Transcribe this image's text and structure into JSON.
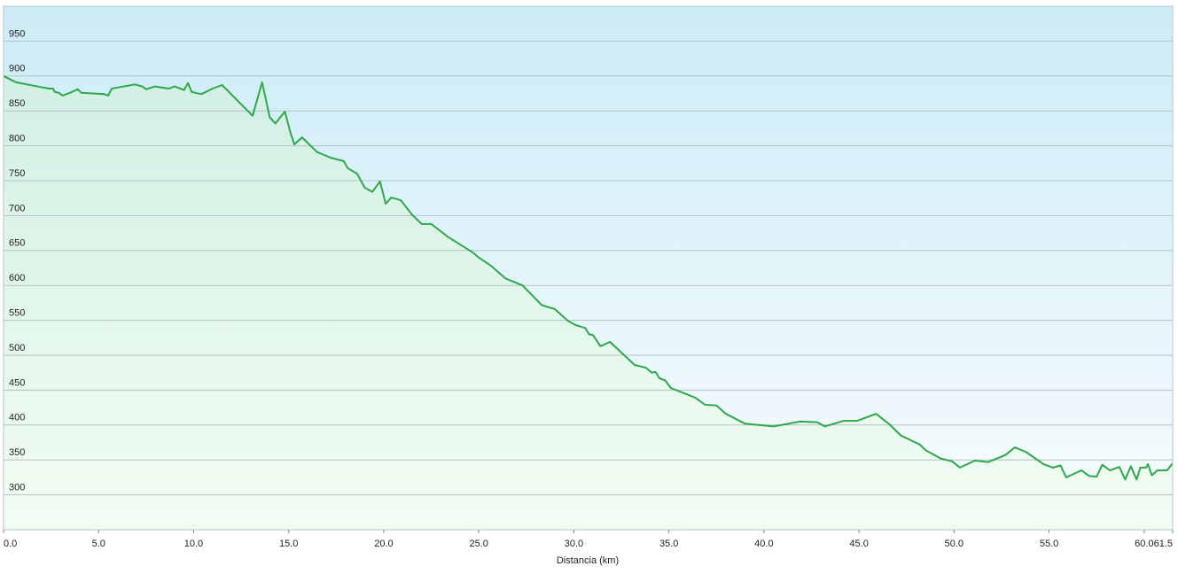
{
  "chart_data": {
    "type": "area",
    "x_label": "Distancia  (km)",
    "x": [
      0,
      0.65,
      1.6,
      2.4,
      2.6,
      2.7,
      2.9,
      3.1,
      3.5,
      3.9,
      4.1,
      5.3,
      5.5,
      5.7,
      6.9,
      7.3,
      7.5,
      7.97,
      8.7,
      9.0,
      9.5,
      9.7,
      9.9,
      10.4,
      11.0,
      11.5,
      13.1,
      13.6,
      14.0,
      14.3,
      14.8,
      15.1,
      15.3,
      15.7,
      16.5,
      17.2,
      17.9,
      18.1,
      18.6,
      19.0,
      19.4,
      19.8,
      20.1,
      20.4,
      20.9,
      21.5,
      22.0,
      22.5,
      23.4,
      24.7,
      24.99,
      25.6,
      26.4,
      27.3,
      28.3,
      29.0,
      29.7,
      30.1,
      30.6,
      30.8,
      31.0,
      31.4,
      31.9,
      33.2,
      33.8,
      34.1,
      34.3,
      34.5,
      34.8,
      35.1,
      36.4,
      36.9,
      37.5,
      38.0,
      39.0,
      40.5,
      41.9,
      42.8,
      43.2,
      44.2,
      44.9,
      45.9,
      46.6,
      47.2,
      48.2,
      48.5,
      49.3,
      49.9,
      50.3,
      51.1,
      51.8,
      52.7,
      53.2,
      53.8,
      54.7,
      55.2,
      55.6,
      55.9,
      56.7,
      57.1,
      57.5,
      57.8,
      58.2,
      58.7,
      59.0,
      59.3,
      59.6,
      59.8,
      60.1,
      60.2,
      60.4,
      60.7,
      61.2,
      61.5
    ],
    "values": [
      900,
      891,
      886,
      882,
      882,
      877,
      876,
      872,
      876,
      881,
      876,
      874,
      872,
      882,
      888,
      885,
      881,
      885,
      882,
      885,
      880,
      890,
      877,
      874,
      882,
      887,
      843,
      891,
      841,
      832,
      849,
      818,
      802,
      812,
      791,
      783,
      778,
      768,
      760,
      740,
      734,
      749,
      717,
      726,
      722,
      701,
      688,
      688,
      669,
      647,
      640,
      629,
      610,
      600,
      572,
      566,
      549,
      543,
      539,
      530,
      529,
      513,
      519,
      486,
      482,
      475,
      476,
      467,
      464,
      453,
      439,
      429,
      428,
      416,
      402,
      398,
      405,
      404,
      398,
      406,
      406,
      416,
      401,
      385,
      372,
      364,
      352,
      348,
      339,
      349,
      347,
      357,
      368,
      361,
      344,
      339,
      342,
      325,
      335,
      327,
      326,
      343,
      335,
      340,
      322,
      341,
      322,
      339,
      339,
      344,
      328,
      335,
      335,
      345
    ],
    "color": "#2ea84a",
    "xlim": [
      0,
      61.5
    ],
    "xticks": [
      {
        "value": 0,
        "label": "0.0"
      },
      {
        "value": 5,
        "label": "5.0"
      },
      {
        "value": 10,
        "label": "10.0"
      },
      {
        "value": 15,
        "label": "15.0"
      },
      {
        "value": 20,
        "label": "20.0"
      },
      {
        "value": 25,
        "label": "25.0"
      },
      {
        "value": 30,
        "label": "30.0"
      },
      {
        "value": 35,
        "label": "35.0"
      },
      {
        "value": 40,
        "label": "40.0"
      },
      {
        "value": 45,
        "label": "45.0"
      },
      {
        "value": 50,
        "label": "50.0"
      },
      {
        "value": 55,
        "label": "55.0"
      },
      {
        "value": 60,
        "label": "60.0"
      },
      61.5
    ],
    "ylim": [
      250,
      1000
    ],
    "yticks": [
      300,
      350,
      400,
      450,
      500,
      550,
      600,
      650,
      700,
      750,
      800,
      850,
      900,
      950
    ],
    "grid": true
  }
}
